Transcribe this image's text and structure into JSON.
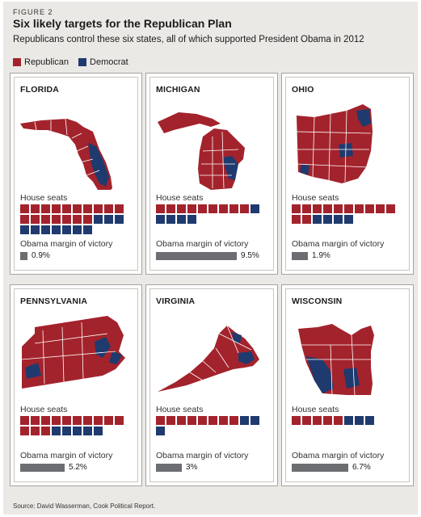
{
  "figure_label": "FIGURE 2",
  "title": "Six likely targets for the Republican Plan",
  "subtitle": "Republicans control these six states, all of which supported President Obama in 2012",
  "legend": [
    {
      "label": "Republican",
      "color": "#a3232c"
    },
    {
      "label": "Democrat",
      "color": "#1f3a6e"
    }
  ],
  "colors": {
    "republican": "#a3232c",
    "democrat": "#1f3a6e",
    "margin_bar": "#6d6e71"
  },
  "labels": {
    "house_seats": "House seats",
    "obama_margin": "Obama margin of victory"
  },
  "source": "Source: David Wasserman, Cook Political Report.",
  "chart_data": {
    "type": "bar",
    "title": "Six likely targets for the Republican Plan",
    "categories": [
      "FLORIDA",
      "MICHIGAN",
      "OHIO",
      "PENNSYLVANIA",
      "VIRGINIA",
      "WISCONSIN"
    ],
    "series": [
      {
        "name": "Republican",
        "values": [
          17,
          9,
          12,
          13,
          8,
          5
        ]
      },
      {
        "name": "Democrat",
        "values": [
          10,
          5,
          4,
          5,
          3,
          3
        ]
      }
    ],
    "obama_margin_of_victory_percent": [
      0.9,
      9.5,
      1.9,
      5.2,
      3,
      6.7
    ],
    "margin_labels": [
      "0.9%",
      "9.5%",
      "1.9%",
      "5.2%",
      "3%",
      "6.7%"
    ]
  }
}
